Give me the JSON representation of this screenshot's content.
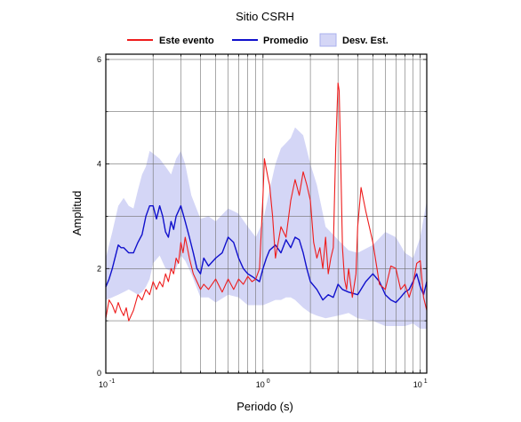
{
  "chart_data": {
    "type": "line",
    "title": "Sitio CSRH",
    "xlabel": "Periodo (s)",
    "ylabel": "Amplitud",
    "xscale": "log",
    "xlim": [
      0.1,
      11
    ],
    "ylim": [
      0,
      6.1
    ],
    "grid": true,
    "legend_placement": "top",
    "x_ticks": [
      {
        "value": 0.1,
        "base": "10",
        "exp": "-1"
      },
      {
        "value": 1,
        "base": "10",
        "exp": "0"
      },
      {
        "value": 10,
        "base": "10",
        "exp": "1"
      }
    ],
    "y_ticks": [
      0,
      2,
      4,
      6
    ],
    "y_tick_labels": [
      "0",
      "2",
      "4",
      "6"
    ],
    "legend": [
      {
        "label": "Este evento",
        "kind": "line",
        "color": "#ee1c1c"
      },
      {
        "label": "Promedio",
        "kind": "line",
        "color": "#1010cc"
      },
      {
        "label": "Desv. Est.",
        "kind": "band",
        "color": "#d4d6f6"
      }
    ],
    "series": [
      {
        "name": "Este evento",
        "color": "#ee1c1c",
        "x": [
          0.1,
          0.105,
          0.11,
          0.115,
          0.12,
          0.125,
          0.13,
          0.135,
          0.14,
          0.15,
          0.16,
          0.17,
          0.18,
          0.19,
          0.2,
          0.21,
          0.22,
          0.23,
          0.24,
          0.25,
          0.26,
          0.27,
          0.28,
          0.29,
          0.3,
          0.31,
          0.32,
          0.33,
          0.34,
          0.36,
          0.38,
          0.4,
          0.42,
          0.45,
          0.5,
          0.55,
          0.6,
          0.65,
          0.7,
          0.75,
          0.8,
          0.85,
          0.9,
          0.95,
          1.0,
          1.02,
          1.05,
          1.08,
          1.1,
          1.15,
          1.2,
          1.3,
          1.4,
          1.5,
          1.6,
          1.7,
          1.8,
          1.9,
          2.0,
          2.1,
          2.2,
          2.3,
          2.4,
          2.5,
          2.6,
          2.7,
          2.8,
          2.9,
          3.0,
          3.05,
          3.1,
          3.2,
          3.3,
          3.4,
          3.5,
          3.7,
          3.9,
          4.0,
          4.2,
          4.5,
          5.0,
          5.5,
          6.0,
          6.5,
          7.0,
          7.5,
          8.0,
          8.5,
          9.0,
          9.5,
          10.0,
          10.5,
          11.0
        ],
        "values": [
          1.05,
          1.4,
          1.3,
          1.15,
          1.35,
          1.2,
          1.1,
          1.25,
          1.0,
          1.2,
          1.5,
          1.4,
          1.6,
          1.5,
          1.75,
          1.6,
          1.75,
          1.65,
          1.9,
          1.75,
          2.0,
          1.9,
          2.2,
          2.1,
          2.5,
          2.3,
          2.6,
          2.4,
          2.2,
          1.9,
          1.75,
          1.6,
          1.7,
          1.6,
          1.8,
          1.55,
          1.8,
          1.6,
          1.8,
          1.7,
          1.85,
          1.75,
          1.8,
          2.0,
          3.4,
          4.1,
          3.9,
          3.7,
          3.6,
          3.0,
          2.2,
          2.8,
          2.6,
          3.3,
          3.7,
          3.4,
          3.85,
          3.6,
          3.3,
          2.5,
          2.2,
          2.4,
          2.0,
          2.6,
          1.9,
          2.2,
          2.4,
          4.3,
          5.55,
          5.4,
          4.5,
          2.4,
          1.8,
          1.6,
          2.0,
          1.45,
          1.9,
          2.8,
          3.55,
          3.1,
          2.5,
          1.7,
          1.6,
          2.05,
          2.0,
          1.6,
          1.7,
          1.45,
          1.7,
          2.1,
          2.15,
          1.45,
          1.2
        ]
      },
      {
        "name": "Promedio",
        "color": "#1010cc",
        "x": [
          0.1,
          0.105,
          0.11,
          0.12,
          0.125,
          0.13,
          0.14,
          0.15,
          0.16,
          0.17,
          0.18,
          0.19,
          0.2,
          0.21,
          0.22,
          0.23,
          0.24,
          0.25,
          0.26,
          0.27,
          0.28,
          0.3,
          0.32,
          0.34,
          0.36,
          0.38,
          0.4,
          0.42,
          0.45,
          0.5,
          0.55,
          0.6,
          0.65,
          0.7,
          0.75,
          0.8,
          0.85,
          0.9,
          0.95,
          1.0,
          1.05,
          1.1,
          1.2,
          1.3,
          1.4,
          1.5,
          1.6,
          1.7,
          1.8,
          1.9,
          2.0,
          2.2,
          2.4,
          2.6,
          2.8,
          3.0,
          3.2,
          3.5,
          4.0,
          4.5,
          5.0,
          5.5,
          6.0,
          6.5,
          7.0,
          7.5,
          8.0,
          8.5,
          9.0,
          9.5,
          10.0,
          10.5,
          11.0
        ],
        "values": [
          1.65,
          1.8,
          2.0,
          2.45,
          2.4,
          2.4,
          2.3,
          2.3,
          2.5,
          2.65,
          3.0,
          3.2,
          3.2,
          2.95,
          3.2,
          3.0,
          2.7,
          2.6,
          2.9,
          2.75,
          3.0,
          3.2,
          2.9,
          2.6,
          2.3,
          2.0,
          1.9,
          2.2,
          2.05,
          2.2,
          2.3,
          2.6,
          2.5,
          2.2,
          2.0,
          1.9,
          1.85,
          1.8,
          1.75,
          2.0,
          2.2,
          2.35,
          2.45,
          2.3,
          2.55,
          2.4,
          2.6,
          2.55,
          2.3,
          2.0,
          1.75,
          1.6,
          1.4,
          1.5,
          1.45,
          1.7,
          1.6,
          1.55,
          1.5,
          1.75,
          1.9,
          1.75,
          1.5,
          1.4,
          1.35,
          1.45,
          1.55,
          1.6,
          1.75,
          1.9,
          1.65,
          1.5,
          1.75
        ]
      }
    ],
    "band": {
      "name": "Desv. Est.",
      "color": "#d4d6f6",
      "x": [
        0.1,
        0.11,
        0.12,
        0.13,
        0.14,
        0.15,
        0.16,
        0.17,
        0.18,
        0.19,
        0.2,
        0.22,
        0.24,
        0.26,
        0.28,
        0.3,
        0.32,
        0.35,
        0.4,
        0.45,
        0.5,
        0.6,
        0.7,
        0.8,
        0.9,
        1.0,
        1.1,
        1.2,
        1.3,
        1.4,
        1.5,
        1.6,
        1.8,
        2.0,
        2.2,
        2.5,
        3.0,
        3.5,
        4.0,
        5.0,
        6.0,
        7.0,
        8.0,
        9.0,
        10.0,
        11.0
      ],
      "upper": [
        2.2,
        2.7,
        3.2,
        3.35,
        3.2,
        3.15,
        3.5,
        3.8,
        3.95,
        4.25,
        4.2,
        4.1,
        3.95,
        3.8,
        4.1,
        4.25,
        4.0,
        3.4,
        2.95,
        3.0,
        2.9,
        3.15,
        3.05,
        2.8,
        2.6,
        2.9,
        3.5,
        4.0,
        4.3,
        4.4,
        4.5,
        4.7,
        4.55,
        4.0,
        3.6,
        2.8,
        2.55,
        2.35,
        2.3,
        2.45,
        2.7,
        2.6,
        2.3,
        2.2,
        2.6,
        3.3
      ],
      "lower": [
        1.4,
        1.45,
        1.5,
        1.55,
        1.6,
        1.55,
        1.5,
        1.55,
        1.65,
        1.8,
        2.1,
        2.25,
        2.0,
        1.95,
        2.0,
        2.25,
        2.15,
        1.9,
        1.45,
        1.45,
        1.35,
        1.5,
        1.45,
        1.3,
        1.3,
        1.3,
        1.35,
        1.4,
        1.4,
        1.45,
        1.45,
        1.4,
        1.25,
        1.15,
        1.1,
        1.05,
        1.1,
        1.15,
        1.05,
        1.0,
        0.9,
        0.9,
        0.9,
        0.95,
        0.85,
        0.85
      ]
    }
  }
}
